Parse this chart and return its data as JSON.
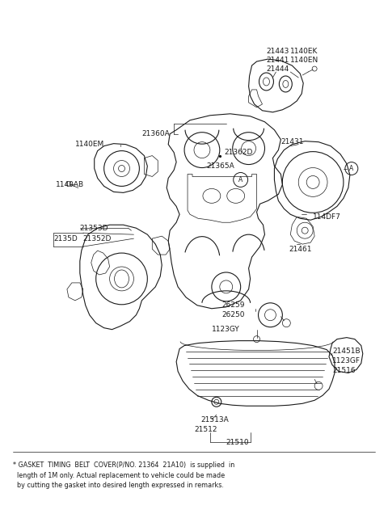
{
  "bg_color": "#ffffff",
  "line_color": "#1a1a1a",
  "fig_width": 4.8,
  "fig_height": 6.57,
  "dpi": 100,
  "footnote_line1": "* GASKET  TIMING  BELT  COVER(P/NO. 21364  21A10)  is supplied  in",
  "footnote_line2": "  length of 1M only. Actual replacement to vehicle could be made",
  "footnote_line3": "  by cutting the gasket into desired length expressed in remarks."
}
